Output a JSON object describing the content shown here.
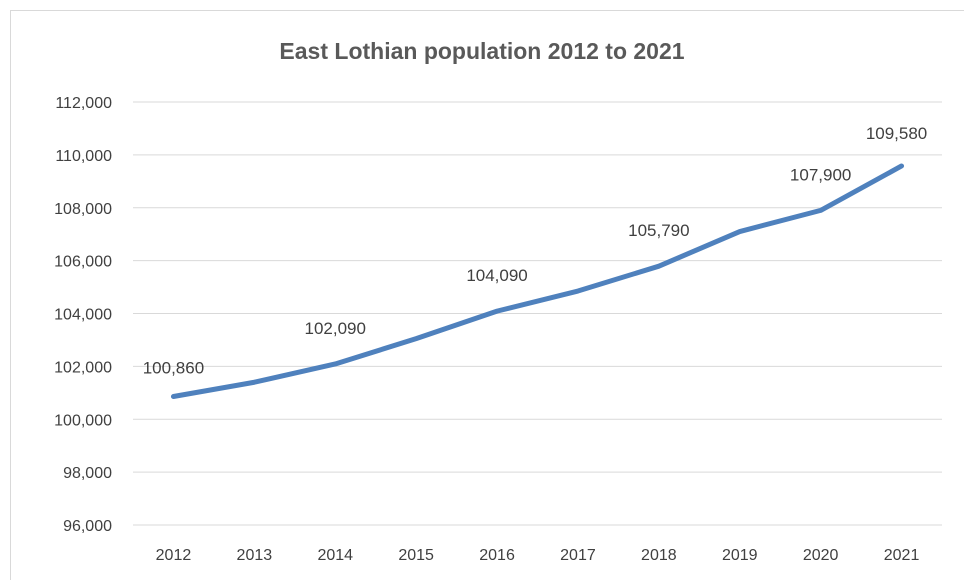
{
  "chart_data": {
    "type": "line",
    "title": "East Lothian population 2012 to 2021",
    "xlabel": "",
    "ylabel": "",
    "categories": [
      "2012",
      "2013",
      "2014",
      "2015",
      "2016",
      "2017",
      "2018",
      "2019",
      "2020",
      "2021"
    ],
    "series": [
      {
        "name": "",
        "values": [
          100860,
          101400,
          102090,
          103050,
          104090,
          104850,
          105790,
          107100,
          107900,
          109580
        ],
        "color": "#4f81bd"
      }
    ],
    "data_labels": [
      {
        "index": 0,
        "text": "100,860"
      },
      {
        "index": 2,
        "text": "102,090"
      },
      {
        "index": 4,
        "text": "104,090"
      },
      {
        "index": 6,
        "text": "105,790"
      },
      {
        "index": 8,
        "text": "107,900"
      },
      {
        "index": 9,
        "text": "109,580"
      }
    ],
    "y_ticks": [
      "96,000",
      "98,000",
      "100,000",
      "102,000",
      "104,000",
      "106,000",
      "108,000",
      "110,000",
      "112,000"
    ],
    "ylim": [
      96000,
      112000
    ],
    "grid": true,
    "legend": "none",
    "colors": {
      "line": "#4f81bd",
      "grid": "#d9d9d9",
      "text": "#404040",
      "title": "#595959"
    }
  }
}
